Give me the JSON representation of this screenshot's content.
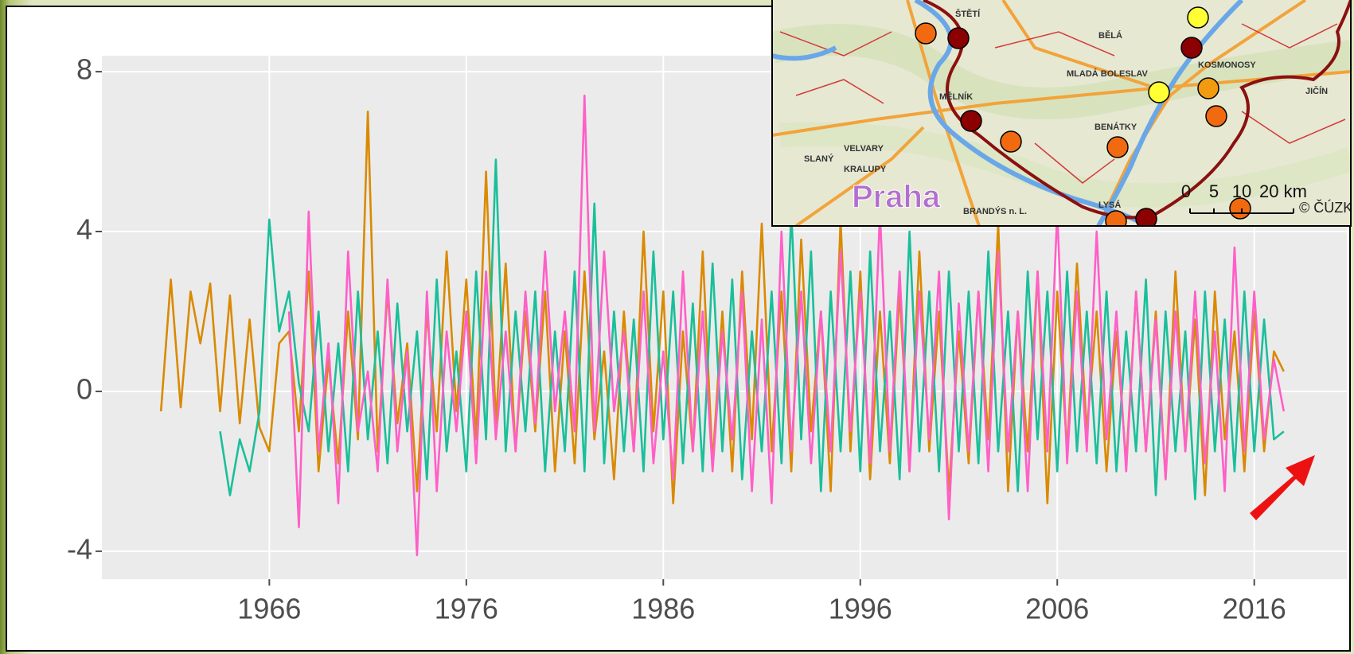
{
  "chart_data": {
    "type": "line",
    "x": [
      1960.5,
      1961,
      1961.5,
      1962,
      1962.5,
      1963,
      1963.5,
      1964,
      1964.5,
      1965,
      1965.5,
      1966,
      1966.5,
      1967,
      1967.5,
      1968,
      1968.5,
      1969,
      1969.5,
      1970,
      1970.5,
      1971,
      1971.5,
      1972,
      1972.5,
      1973,
      1973.5,
      1974,
      1974.5,
      1975,
      1975.5,
      1976,
      1976.5,
      1977,
      1977.5,
      1978,
      1978.5,
      1979,
      1979.5,
      1980,
      1980.5,
      1981,
      1981.5,
      1982,
      1982.5,
      1983,
      1983.5,
      1984,
      1984.5,
      1985,
      1985.5,
      1986,
      1986.5,
      1987,
      1987.5,
      1988,
      1988.5,
      1989,
      1989.5,
      1990,
      1990.5,
      1991,
      1991.5,
      1992,
      1992.5,
      1993,
      1993.5,
      1994,
      1994.5,
      1995,
      1995.5,
      1996,
      1996.5,
      1997,
      1997.5,
      1998,
      1998.5,
      1999,
      1999.5,
      2000,
      2000.5,
      2001,
      2001.5,
      2002,
      2002.5,
      2003,
      2003.5,
      2004,
      2004.5,
      2005,
      2005.5,
      2006,
      2006.5,
      2007,
      2007.5,
      2008,
      2008.5,
      2009,
      2009.5,
      2010,
      2010.5,
      2011,
      2011.5,
      2012,
      2012.5,
      2013,
      2013.5,
      2014,
      2014.5,
      2015,
      2015.5,
      2016,
      2016.5,
      2017,
      2017.5
    ],
    "series": [
      {
        "color": "#d98a00",
        "values": [
          -0.5,
          2.8,
          -0.4,
          2.5,
          1.2,
          2.7,
          -0.5,
          2.4,
          -0.8,
          1.8,
          -0.9,
          -1.5,
          1.2,
          1.5,
          -1.0,
          3.0,
          -2.0,
          0.8,
          -1.8,
          2.0,
          -1.2,
          7.0,
          -1.5,
          2.5,
          -0.8,
          1.2,
          -2.5,
          2.0,
          -1.0,
          3.5,
          -0.5,
          2.8,
          -1.2,
          5.5,
          -0.8,
          3.2,
          -1.5,
          2.0,
          -1.0,
          2.5,
          -2.0,
          1.5,
          -1.8,
          3.0,
          -1.2,
          1.0,
          -2.2,
          2.0,
          -1.5,
          4.0,
          -1.0,
          2.5,
          -2.8,
          1.5,
          -1.5,
          3.5,
          -1.8,
          2.0,
          -2.0,
          3.0,
          -1.2,
          4.2,
          -1.5,
          2.5,
          -2.0,
          3.8,
          -1.0,
          2.0,
          -2.5,
          4.3,
          -1.5,
          3.0,
          -2.2,
          2.0,
          -1.8,
          2.5,
          -2.0,
          3.5,
          -1.5,
          2.0,
          -2.5,
          1.5,
          -1.8,
          2.5,
          -1.2,
          4.2,
          -2.5,
          2.0,
          -1.5,
          3.0,
          -2.8,
          2.5,
          -1.5,
          3.2,
          -1.0,
          2.0,
          -2.0,
          1.5,
          -1.8,
          2.5,
          -1.5,
          2.0,
          -2.2,
          3.0,
          -1.5,
          1.8,
          -2.6,
          2.5,
          -1.2,
          1.5,
          -2.0,
          2.0,
          -1.5,
          1.0,
          0.5
        ]
      },
      {
        "color": "#1abf9a",
        "values": [
          null,
          null,
          null,
          null,
          null,
          null,
          -1.0,
          -2.6,
          -1.2,
          -2.0,
          -0.5,
          4.3,
          1.5,
          2.5,
          0.2,
          -1.0,
          2.0,
          -1.5,
          1.2,
          -2.0,
          2.5,
          -1.2,
          1.5,
          -1.8,
          2.2,
          -1.0,
          1.5,
          -2.2,
          2.8,
          -1.5,
          1.0,
          -2.0,
          3.0,
          -1.2,
          5.8,
          -1.5,
          2.0,
          -1.0,
          2.5,
          -2.0,
          1.5,
          -1.5,
          3.0,
          -2.0,
          4.7,
          -1.8,
          2.0,
          -1.5,
          1.8,
          -2.0,
          3.5,
          -1.2,
          2.5,
          -1.8,
          2.2,
          -2.0,
          3.2,
          -1.5,
          2.8,
          -2.2,
          1.5,
          -1.5,
          2.5,
          -1.8,
          4.5,
          -1.2,
          3.5,
          -2.5,
          2.5,
          -1.5,
          3.0,
          -2.0,
          3.5,
          -1.5,
          2.0,
          -2.2,
          4.0,
          -1.5,
          2.5,
          -2.0,
          3.0,
          -1.5,
          2.5,
          -1.8,
          3.5,
          -1.5,
          2.0,
          -2.5,
          3.0,
          -1.2,
          2.5,
          -2.0,
          3.0,
          -1.5,
          2.0,
          -1.8,
          2.5,
          -2.0,
          1.5,
          -1.5,
          2.8,
          -2.6,
          2.0,
          -1.5,
          1.5,
          -2.7,
          2.5,
          -1.5,
          1.8,
          -2.0,
          2.5,
          -1.5,
          1.8,
          -1.2,
          -1.0
        ]
      },
      {
        "color": "#ff5fc8",
        "values": [
          null,
          null,
          null,
          null,
          null,
          null,
          null,
          null,
          null,
          null,
          null,
          null,
          null,
          2.0,
          -3.4,
          4.5,
          -1.5,
          1.2,
          -2.8,
          3.5,
          -1.0,
          0.5,
          -2.0,
          2.8,
          -1.5,
          1.0,
          -4.1,
          2.5,
          -2.5,
          1.5,
          -1.0,
          2.0,
          -1.8,
          3.0,
          -1.2,
          1.5,
          -1.5,
          2.5,
          -0.8,
          3.5,
          -0.5,
          2.0,
          -1.0,
          7.4,
          -1.0,
          3.5,
          -0.5,
          1.5,
          -1.5,
          2.5,
          -1.8,
          1.0,
          -2.2,
          3.0,
          -1.5,
          2.0,
          -2.0,
          1.5,
          -1.2,
          2.5,
          -2.5,
          1.8,
          -2.8,
          4.0,
          -1.5,
          2.5,
          -1.8,
          2.0,
          -1.5,
          3.5,
          -1.0,
          2.5,
          -1.8,
          4.5,
          -1.5,
          3.0,
          -2.0,
          2.5,
          -1.2,
          3.0,
          -3.2,
          2.2,
          -1.5,
          2.5,
          -2.0,
          3.5,
          -1.5,
          2.0,
          -2.5,
          3.0,
          -1.5,
          4.5,
          -1.8,
          2.5,
          -1.5,
          4.0,
          -1.2,
          2.0,
          -2.0,
          2.5,
          -1.5,
          1.8,
          -2.2,
          2.0,
          -1.5,
          2.5,
          -1.8,
          1.5,
          -2.5,
          3.6,
          -1.5,
          2.5,
          -1.2,
          0.8,
          -0.5
        ]
      }
    ],
    "xlim": [
      1957.5,
      2020.7
    ],
    "ylim": [
      -4.7,
      8.4
    ],
    "xticks": [
      1966,
      1976,
      1986,
      1996,
      2006,
      2016
    ],
    "yticks": [
      -4,
      0,
      4,
      8
    ],
    "grid": true
  },
  "inset_map": {
    "place": "Praha",
    "labels": [
      "MLADÁ BOLESLAV",
      "MĚLNÍK",
      "KOSMONOSY",
      "BENÁTKY",
      "VELVARY",
      "KRALUPY",
      "SLANÝ",
      "ŠTĚTÍ",
      "BRANDÝS n. L.",
      "LYSÁ",
      "BĚLÁ",
      "JIČÍN"
    ],
    "scale": [
      "0",
      "5",
      "10",
      "20 km"
    ],
    "copyright": "© ČÚZK"
  }
}
